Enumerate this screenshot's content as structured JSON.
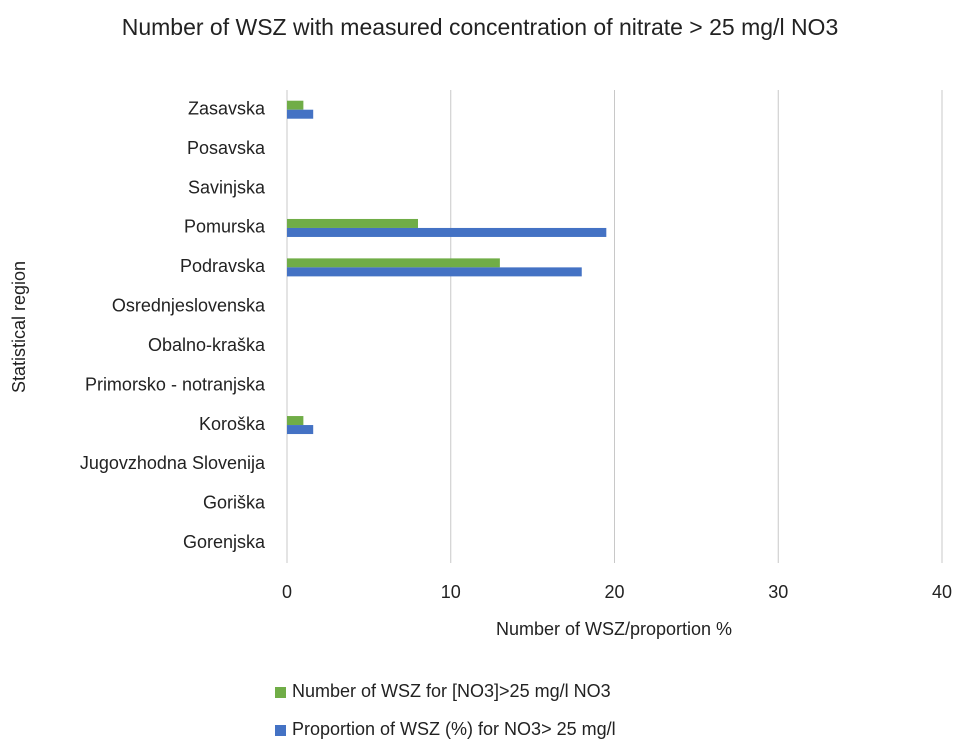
{
  "chart_data": {
    "type": "bar",
    "orientation": "horizontal",
    "title": "Number of WSZ with measured concentration of nitrate > 25 mg/l NO3",
    "x_label": "Number of WSZ/proportion   %",
    "y_label": "Statistical region",
    "categories": [
      "Zasavska",
      "Posavska",
      "Savinjska",
      "Pomurska",
      "Podravska",
      "Osrednjeslovenska",
      "Obalno-kraška",
      "Primorsko - notranjska",
      "Koroška",
      "Jugovzhodna Slovenija",
      "Goriška",
      "Gorenjska"
    ],
    "series": [
      {
        "name": "Number of WSZ  for [NO3]>25 mg/l NO3",
        "color": "#70ad47",
        "values": [
          1,
          0,
          0,
          8,
          13,
          0,
          0,
          0,
          1,
          0,
          0,
          0
        ]
      },
      {
        "name": "Proportion of WSZ (%) for NO3> 25 mg/l",
        "color": "#4472c4",
        "values": [
          1.6,
          0,
          0,
          19.5,
          18,
          0,
          0,
          0,
          1.6,
          0,
          0,
          0
        ]
      }
    ],
    "xlim": [
      0,
      40
    ],
    "xticks": [
      0,
      10,
      20,
      30,
      40
    ],
    "grid": true,
    "legend": "bottom"
  }
}
